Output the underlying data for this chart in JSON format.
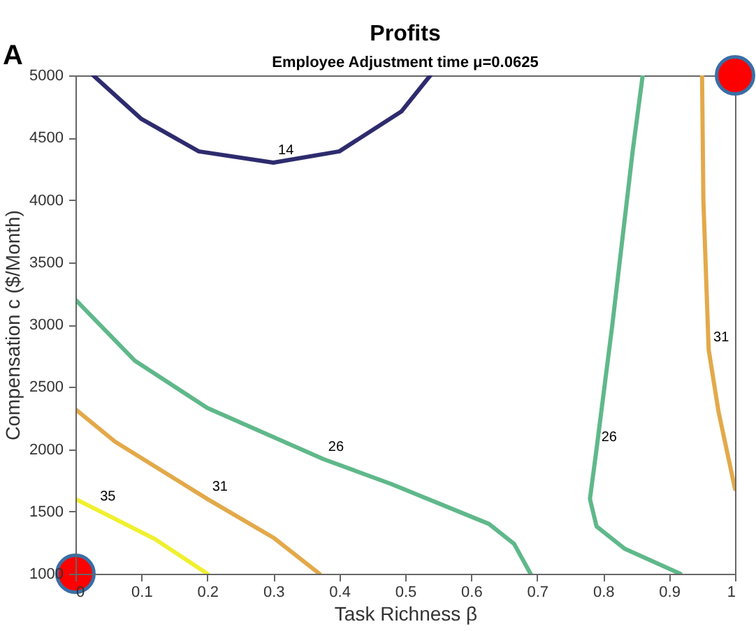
{
  "chart_data": {
    "type": "line",
    "title": "Profits",
    "subtitle": "Employee Adjustment time μ=0.0625",
    "xlabel": "Task Richness β",
    "ylabel": "Compensation c ($/Month)",
    "annotations": [
      "A"
    ],
    "xlim": [
      0,
      1
    ],
    "ylim": [
      1000,
      5000
    ],
    "xticks": [
      0,
      0.1,
      0.2,
      0.3,
      0.4,
      0.5,
      0.6,
      0.7,
      0.8,
      0.9,
      1
    ],
    "yticks": [
      1000,
      1500,
      2000,
      2500,
      3000,
      3500,
      4000,
      4500,
      5000
    ],
    "grid": false,
    "legend": false,
    "series": [
      {
        "name": "14",
        "color": "#2e2b6e",
        "x": [
          0.027,
          0.1,
          0.187,
          0.3,
          0.4,
          0.494,
          0.538
        ],
        "values": [
          5000,
          4650,
          4390,
          4300,
          4390,
          4710,
          5000
        ]
      },
      {
        "name": "26",
        "color": "#5fb88a",
        "x": [
          0,
          0.09,
          0.2,
          0.376,
          0.479,
          0.627,
          0.665,
          0.69
        ],
        "values": [
          3200,
          2710,
          2330,
          1920,
          1720,
          1400,
          1240,
          1000
        ]
      },
      {
        "name": "31",
        "color": "#e3a94a",
        "x": [
          0,
          0.06,
          0.2,
          0.3,
          0.37
        ],
        "values": [
          2320,
          2060,
          1600,
          1290,
          1000
        ]
      },
      {
        "name": "35",
        "color": "#f0f030",
        "x": [
          0,
          0.03,
          0.12,
          0.2
        ],
        "values": [
          1600,
          1520,
          1280,
          1000
        ]
      },
      {
        "name": "26",
        "color": "#5fb88a",
        "x": [
          0.86,
          0.845,
          0.814,
          0.79,
          0.78,
          0.79,
          0.833,
          0.917
        ],
        "values": [
          5000,
          4400,
          3000,
          2000,
          1600,
          1380,
          1200,
          1000
        ]
      },
      {
        "name": "31",
        "color": "#e3a94a",
        "x": [
          0.95,
          0.952,
          0.96,
          0.975,
          1
        ],
        "values": [
          5000,
          4000,
          2800,
          2300,
          1680
        ]
      },
      {
        "type": "scatter",
        "color": "#ff0000",
        "x": [
          0,
          1
        ],
        "values": [
          1000,
          5000
        ]
      }
    ]
  }
}
